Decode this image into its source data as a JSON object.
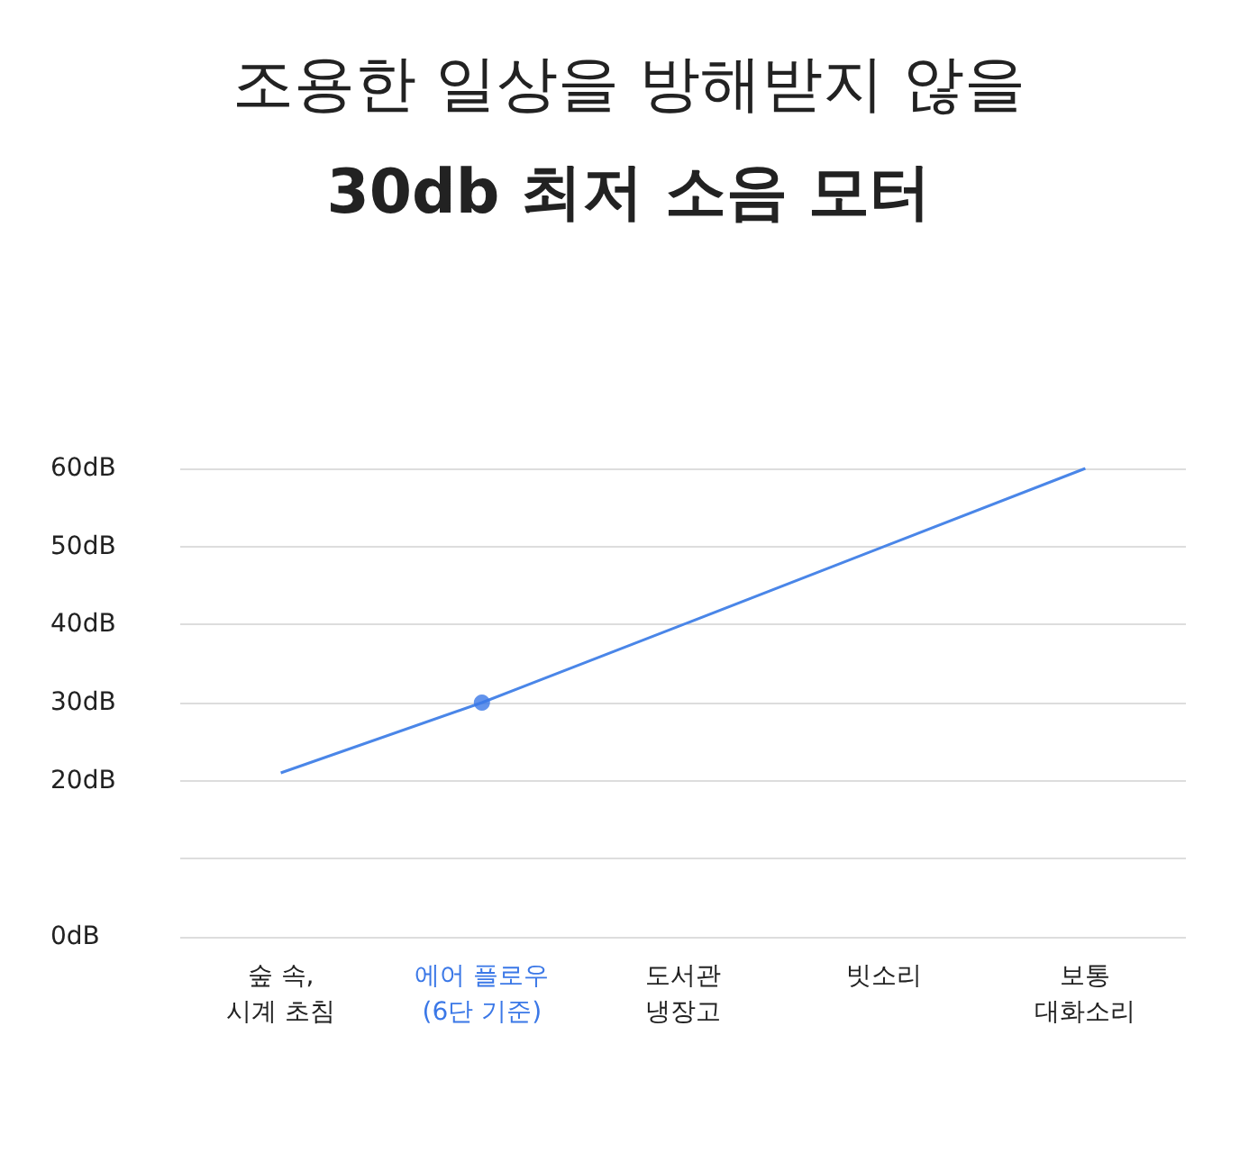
{
  "chart_data": {
    "type": "line",
    "title": "조용한 일상을 방해받지 않을",
    "subtitle": "30db 최저 소음 모터",
    "categories": [
      "숲 속,\n시계 초침",
      "에어 플로우\n(6단 기준)",
      "도서관\n냉장고",
      "빗소리",
      "보통\n대화소리"
    ],
    "series": [
      {
        "color": "#4a86e8",
        "values": [
          21,
          30,
          40,
          50,
          60
        ],
        "marker": "none"
      },
      {
        "type": "scatter",
        "color": "#3b78e7",
        "x": [
          "에어 플로우\n(6단 기준)"
        ],
        "values": [
          30
        ],
        "marker": "circle"
      }
    ],
    "ylim": [
      0,
      60
    ],
    "yticks": [
      {
        "value": 0,
        "label": "0dB"
      },
      {
        "value": 10,
        "label": null
      },
      {
        "value": 20,
        "label": "20dB"
      },
      {
        "value": 30,
        "label": "30dB"
      },
      {
        "value": 40,
        "label": "40dB"
      },
      {
        "value": 50,
        "label": "50dB"
      },
      {
        "value": 60,
        "label": "60dB"
      }
    ],
    "grid": "y"
  }
}
